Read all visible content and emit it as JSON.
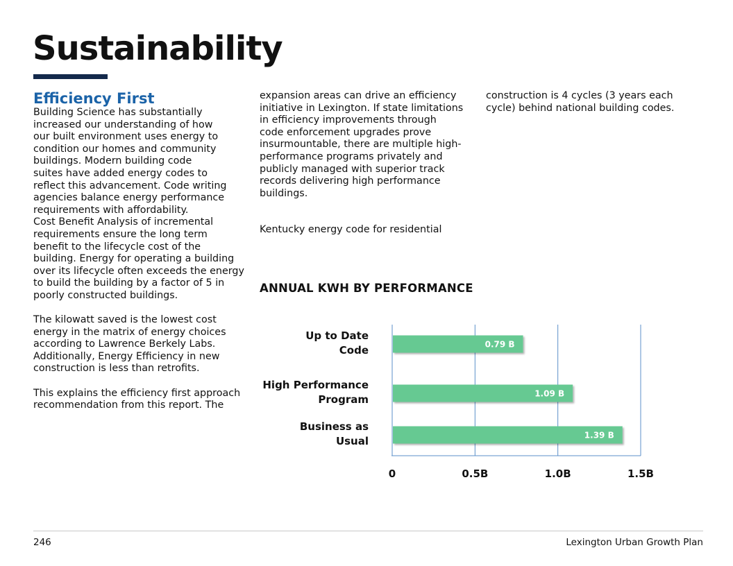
{
  "header": {
    "title": "Sustainability"
  },
  "column1": {
    "subheading": "Efficiency First",
    "p1": "Building Science has substantially\nincreased our understanding of how\nour built environment uses energy to\ncondition our homes and community\nbuildings. Modern building code\nsuites have added energy codes to\nreflect this advancement. Code writing\nagencies balance energy performance\nrequirements with affordability.",
    "p2": "Cost Benefit Analysis of incremental\nrequirements ensure the long term\nbenefit to the lifecycle cost of the\nbuilding. Energy for operating a building\nover its lifecycle often exceeds the energy\nto build the building by a factor of 5 in\npoorly constructed buildings.",
    "p3": "The kilowatt saved is the lowest cost\nenergy in the matrix of energy choices\naccording to Lawrence Berkely Labs.\nAdditionally, Energy Efficiency in new\nconstruction is less than retrofits.",
    "p4": "This explains the efficiency first approach\nrecommendation from this report. The"
  },
  "column2": {
    "p1": "expansion areas can drive an efficiency\ninitiative in Lexington. If state limitations\nin efficiency improvements through\ncode enforcement upgrades prove\ninsurmountable, there are multiple high-\nperformance programs privately and\npublicly managed with superior track\nrecords delivering high performance\nbuildings.",
    "p2": "Kentucky energy code for residential"
  },
  "column3": {
    "p1": "construction is 4 cycles (3 years each\ncycle) behind national building codes."
  },
  "chart_data": {
    "type": "bar",
    "orientation": "horizontal",
    "title": "ANNUAL KWH BY PERFORMANCE",
    "categories": [
      [
        "Up to Date",
        "Code"
      ],
      [
        "High Performance",
        "Program"
      ],
      [
        "Business as",
        "Usual"
      ]
    ],
    "values": [
      0.79,
      1.09,
      1.39
    ],
    "value_labels": [
      "0.79 B",
      "1.09 B",
      "1.39 B"
    ],
    "xlim": [
      0,
      1.5
    ],
    "xticks": [
      0,
      0.5,
      1.0,
      1.5
    ],
    "xtick_labels": [
      "0",
      "0.5B",
      "1.0B",
      "1.5B"
    ],
    "unit": "billion kWh",
    "colors": {
      "bar": "#66c992",
      "grid": "#5b8fc9",
      "label": "#ffffff"
    }
  },
  "footer": {
    "page_number": "246",
    "document_name": "Lexington Urban Growth Plan"
  }
}
